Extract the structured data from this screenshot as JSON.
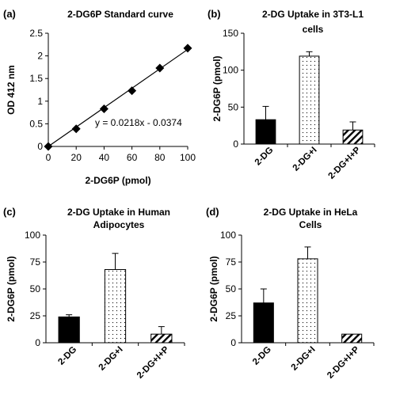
{
  "chart_data": [
    {
      "panel": "(a)",
      "type": "scatter",
      "title": "2-DG6P Standard curve",
      "xlabel": "2-DG6P (pmol)",
      "ylabel": "OD 412 nm",
      "x": [
        0,
        20,
        40,
        60,
        80,
        100
      ],
      "y": [
        0.0,
        0.39,
        0.83,
        1.23,
        1.73,
        2.17
      ],
      "xlim": [
        0,
        100
      ],
      "ylim": [
        0,
        2.5
      ],
      "xticks": [
        0,
        20,
        40,
        60,
        80,
        100
      ],
      "yticks": [
        0,
        0.5,
        1,
        1.5,
        2,
        2.5
      ],
      "trendline": {
        "slope": 0.0218,
        "intercept": -0.0374
      },
      "equation": "y = 0.0218x - 0.0374",
      "grid": false
    },
    {
      "panel": "(b)",
      "type": "bar",
      "title": "2-DG Uptake in 3T3-L1 cells",
      "title_lines": [
        "2-DG Uptake in 3T3-L1",
        "cells"
      ],
      "ylabel": "2-DG6P (pmol)",
      "categories": [
        "2-DG",
        "2-DG+I",
        "2-DG+I+P"
      ],
      "values": [
        33,
        119,
        19
      ],
      "errors": [
        18,
        6,
        11
      ],
      "patterns": [
        "solid",
        "dots",
        "hatch"
      ],
      "ylim": [
        0,
        150
      ],
      "yticks": [
        0,
        50,
        100,
        150
      ],
      "grid": false
    },
    {
      "panel": "(c)",
      "type": "bar",
      "title": "2-DG Uptake in Human Adipocytes",
      "title_lines": [
        "2-DG Uptake in Human",
        "Adipocytes"
      ],
      "ylabel": "2-DG6P (pmol)",
      "categories": [
        "2-DG",
        "2-DG+I",
        "2-DG+I+P"
      ],
      "values": [
        24,
        68,
        8
      ],
      "errors": [
        2,
        15,
        7
      ],
      "patterns": [
        "solid",
        "dots",
        "hatch"
      ],
      "ylim": [
        0,
        100
      ],
      "yticks": [
        0,
        25,
        50,
        75,
        100
      ],
      "grid": false
    },
    {
      "panel": "(d)",
      "type": "bar",
      "title": "2-DG Uptake in HeLa Cells",
      "title_lines": [
        "2-DG Uptake in HeLa",
        "Cells"
      ],
      "ylabel": "2-DG6P (pmol)",
      "categories": [
        "2-DG",
        "2-DG+I",
        "2-DG+I+P"
      ],
      "values": [
        37,
        78,
        8
      ],
      "errors": [
        13,
        11,
        0
      ],
      "patterns": [
        "solid",
        "dots",
        "hatch"
      ],
      "ylim": [
        0,
        100
      ],
      "yticks": [
        0,
        25,
        50,
        75,
        100
      ],
      "grid": false
    }
  ]
}
